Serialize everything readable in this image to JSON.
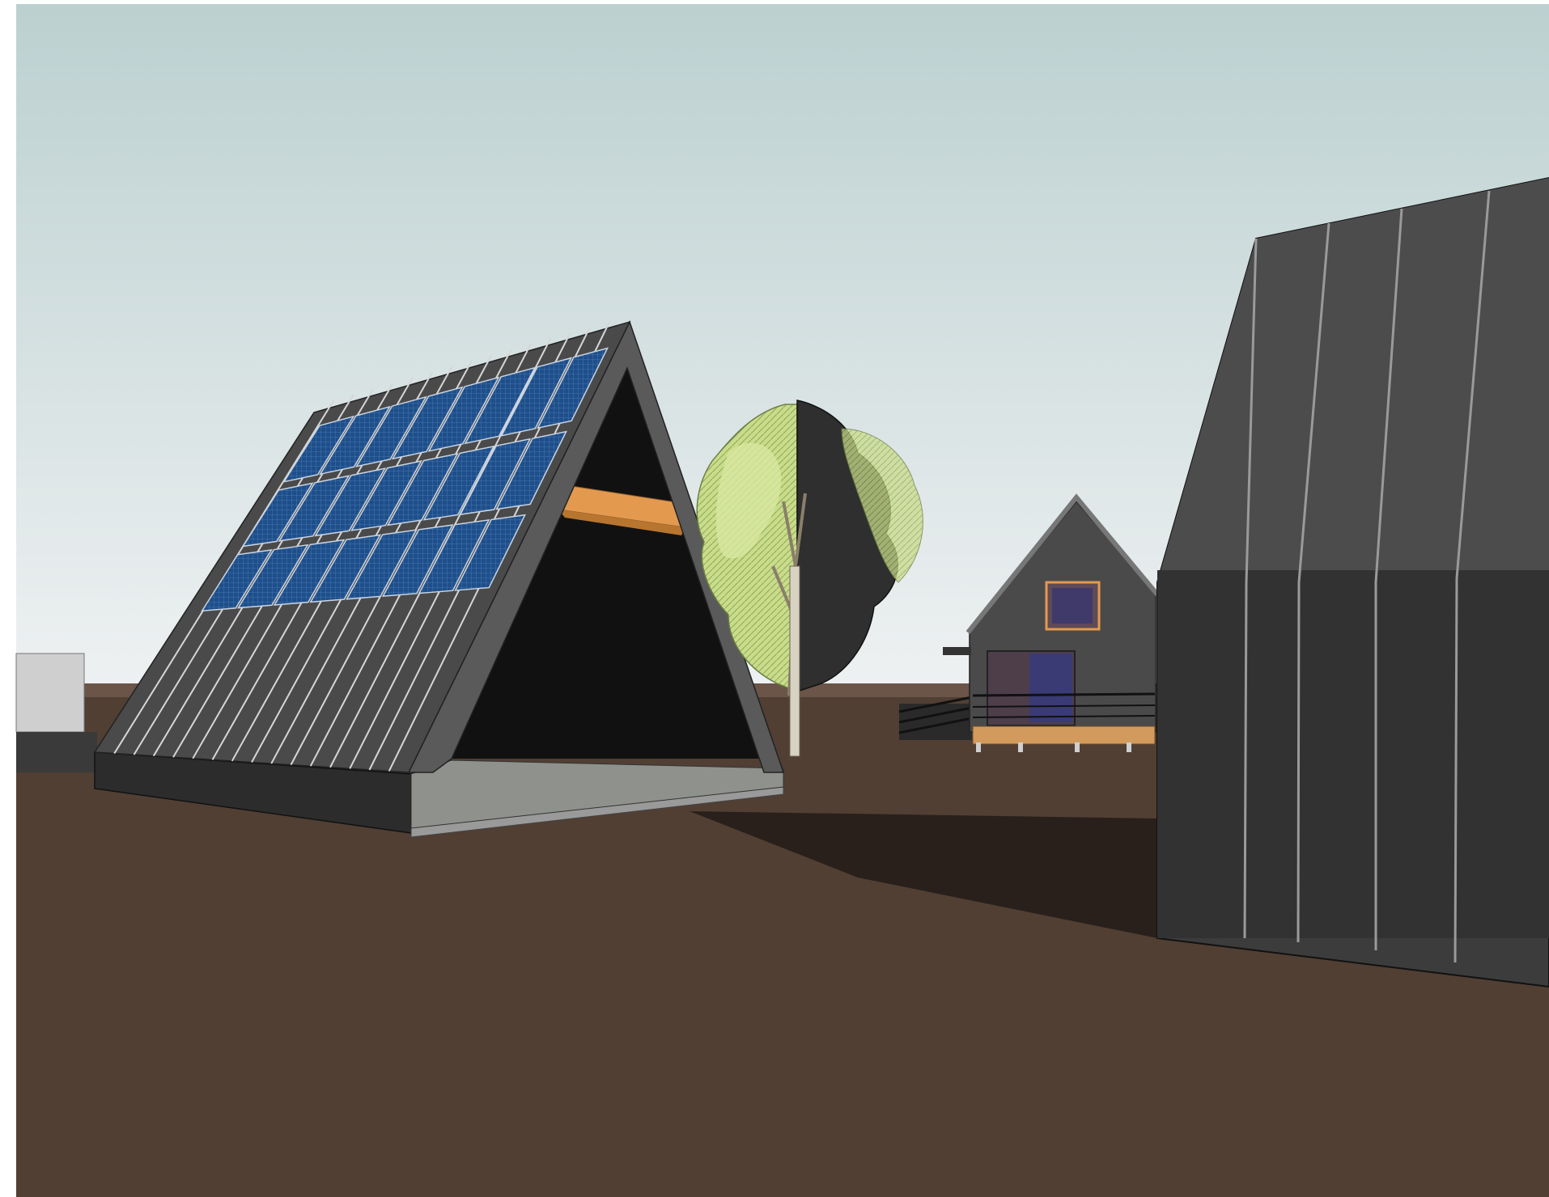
{
  "scene": {
    "kind": "architectural-3d-render",
    "subjects": [
      "a-frame-solar-pavilion",
      "gable-house-with-deck",
      "tree",
      "dark-standing-seam-building"
    ],
    "colors": {
      "sky_top": "#bcd0d0",
      "sky_bottom": "#eef1f2",
      "ground": "#513f34",
      "shadow": "#2a201b",
      "roof": "#4a4a4a",
      "roof_seam": "#d6d6d6",
      "solar_panel": "#1f4f8a",
      "interior": "#111111",
      "timber": "#e39a4f",
      "building_dark": "#3c3c3c"
    },
    "solar_array": {
      "rows": 3,
      "columns": 8
    }
  }
}
